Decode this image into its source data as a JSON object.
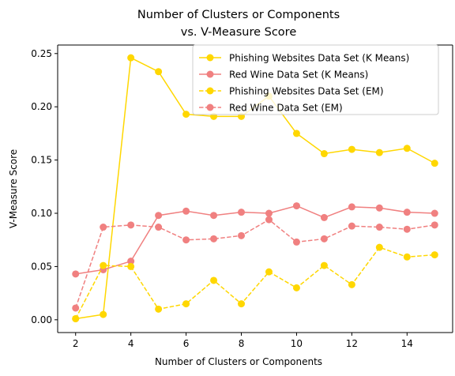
{
  "chart_data": {
    "type": "line",
    "title_lines": [
      "Number of Clusters or Components",
      "vs. V-Measure Score"
    ],
    "xlabel": "Number of Clusters or Components",
    "ylabel": "V-Measure Score",
    "xlim": [
      1.35,
      15.65
    ],
    "ylim": [
      -0.012,
      0.258
    ],
    "xticks": [
      2,
      4,
      6,
      8,
      10,
      12,
      14
    ],
    "yticks": [
      0.0,
      0.05,
      0.1,
      0.15,
      0.2,
      0.25
    ],
    "ytick_labels": [
      "0.00",
      "0.05",
      "0.10",
      "0.15",
      "0.20",
      "0.25"
    ],
    "x": [
      2,
      3,
      4,
      5,
      6,
      7,
      8,
      9,
      10,
      11,
      12,
      13,
      14,
      15
    ],
    "legend_position": "top-right",
    "grid": false,
    "series": [
      {
        "name": "Phishing Websites Data Set (K Means)",
        "color": "#ffd700",
        "linestyle": "solid",
        "values": [
          0.001,
          0.005,
          0.246,
          0.233,
          0.193,
          0.191,
          0.191,
          0.21,
          0.175,
          0.156,
          0.16,
          0.157,
          0.161,
          0.147
        ]
      },
      {
        "name": "Red Wine Data Set (K Means)",
        "color": "#f08080",
        "linestyle": "solid",
        "values": [
          0.043,
          0.047,
          0.055,
          0.098,
          0.102,
          0.098,
          0.101,
          0.1,
          0.107,
          0.096,
          0.106,
          0.105,
          0.101,
          0.1
        ]
      },
      {
        "name": "Phishing Websites Data Set (EM)",
        "color": "#ffd700",
        "linestyle": "dashed",
        "values": [
          0.001,
          0.051,
          0.05,
          0.01,
          0.015,
          0.037,
          0.015,
          0.045,
          0.03,
          0.051,
          0.033,
          0.068,
          0.059,
          0.061
        ]
      },
      {
        "name": "Red Wine Data Set (EM)",
        "color": "#f08080",
        "linestyle": "dashed",
        "values": [
          0.011,
          0.087,
          0.089,
          0.087,
          0.075,
          0.076,
          0.079,
          0.094,
          0.073,
          0.076,
          0.088,
          0.087,
          0.085,
          0.089
        ]
      }
    ]
  }
}
